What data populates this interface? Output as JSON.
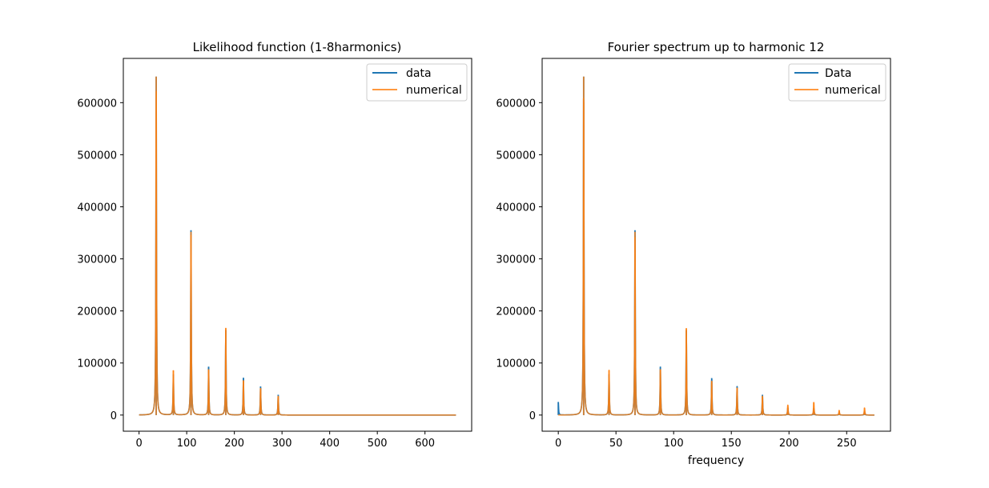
{
  "chart_data": [
    {
      "type": "line",
      "title": "Likelihood function (1-8harmonics)",
      "xlabel": "",
      "ylabel": "",
      "xlim": [
        -33,
        698
      ],
      "ylim": [
        -31000,
        685000
      ],
      "xticks": [
        0,
        100,
        200,
        300,
        400,
        500,
        600
      ],
      "yticks": [
        0,
        100000,
        200000,
        300000,
        400000,
        500000,
        600000
      ],
      "xtick_labels": [
        "0",
        "100",
        "200",
        "300",
        "400",
        "500",
        "600"
      ],
      "ytick_labels": [
        "0",
        "100000",
        "200000",
        "300000",
        "400000",
        "500000",
        "600000"
      ],
      "x_range": [
        0,
        665
      ],
      "legend_position": "upper-right",
      "legend_entries": [
        "data",
        "numerical"
      ],
      "grid": false,
      "series": [
        {
          "name": "data",
          "color": "#1f77b4",
          "peaks": [
            [
              36,
              650000
            ],
            [
              72,
              78000
            ],
            [
              109,
              355000
            ],
            [
              146,
              93000
            ],
            [
              182,
              163000
            ],
            [
              219,
              71000
            ],
            [
              255,
              55000
            ],
            [
              292,
              39000
            ]
          ]
        },
        {
          "name": "numerical",
          "color": "#ff7f0e",
          "peaks": [
            [
              36,
              650000
            ],
            [
              72,
              86000
            ],
            [
              109,
              352000
            ],
            [
              146,
              88000
            ],
            [
              182,
              167000
            ],
            [
              219,
              66000
            ],
            [
              255,
              52000
            ],
            [
              292,
              37000
            ]
          ]
        }
      ]
    },
    {
      "type": "line",
      "title": "Fourier spectrum up to harmonic 12",
      "xlabel": "frequency",
      "ylabel": "",
      "xlim": [
        -14,
        288
      ],
      "ylim": [
        -31000,
        685000
      ],
      "xticks": [
        0,
        50,
        100,
        150,
        200,
        250
      ],
      "yticks": [
        0,
        100000,
        200000,
        300000,
        400000,
        500000,
        600000
      ],
      "xtick_labels": [
        "0",
        "50",
        "100",
        "150",
        "200",
        "250"
      ],
      "ytick_labels": [
        "0",
        "100000",
        "200000",
        "300000",
        "400000",
        "500000",
        "600000"
      ],
      "x_range": [
        0,
        274
      ],
      "legend_position": "upper-right",
      "legend_entries": [
        "Data",
        "numerical"
      ],
      "grid": false,
      "series": [
        {
          "name": "Data",
          "color": "#1f77b4",
          "peaks": [
            [
              0,
              25000
            ],
            [
              22,
              650000
            ],
            [
              44,
              78000
            ],
            [
              66.5,
              355000
            ],
            [
              88.5,
              93000
            ],
            [
              111,
              163000
            ],
            [
              133,
              71000
            ],
            [
              155,
              55000
            ],
            [
              177,
              39000
            ],
            [
              199,
              14000
            ],
            [
              221.5,
              13000
            ],
            [
              243.5,
              5000
            ],
            [
              265.5,
              7000
            ]
          ]
        },
        {
          "name": "numerical",
          "color": "#ff7f0e",
          "peaks": [
            [
              0,
              0
            ],
            [
              22,
              650000
            ],
            [
              44,
              86000
            ],
            [
              66.5,
              352000
            ],
            [
              88.5,
              88000
            ],
            [
              111,
              167000
            ],
            [
              133,
              66000
            ],
            [
              155,
              52000
            ],
            [
              177,
              37000
            ],
            [
              199,
              19000
            ],
            [
              221.5,
              25000
            ],
            [
              243.5,
              9000
            ],
            [
              265.5,
              14000
            ]
          ]
        }
      ]
    }
  ]
}
